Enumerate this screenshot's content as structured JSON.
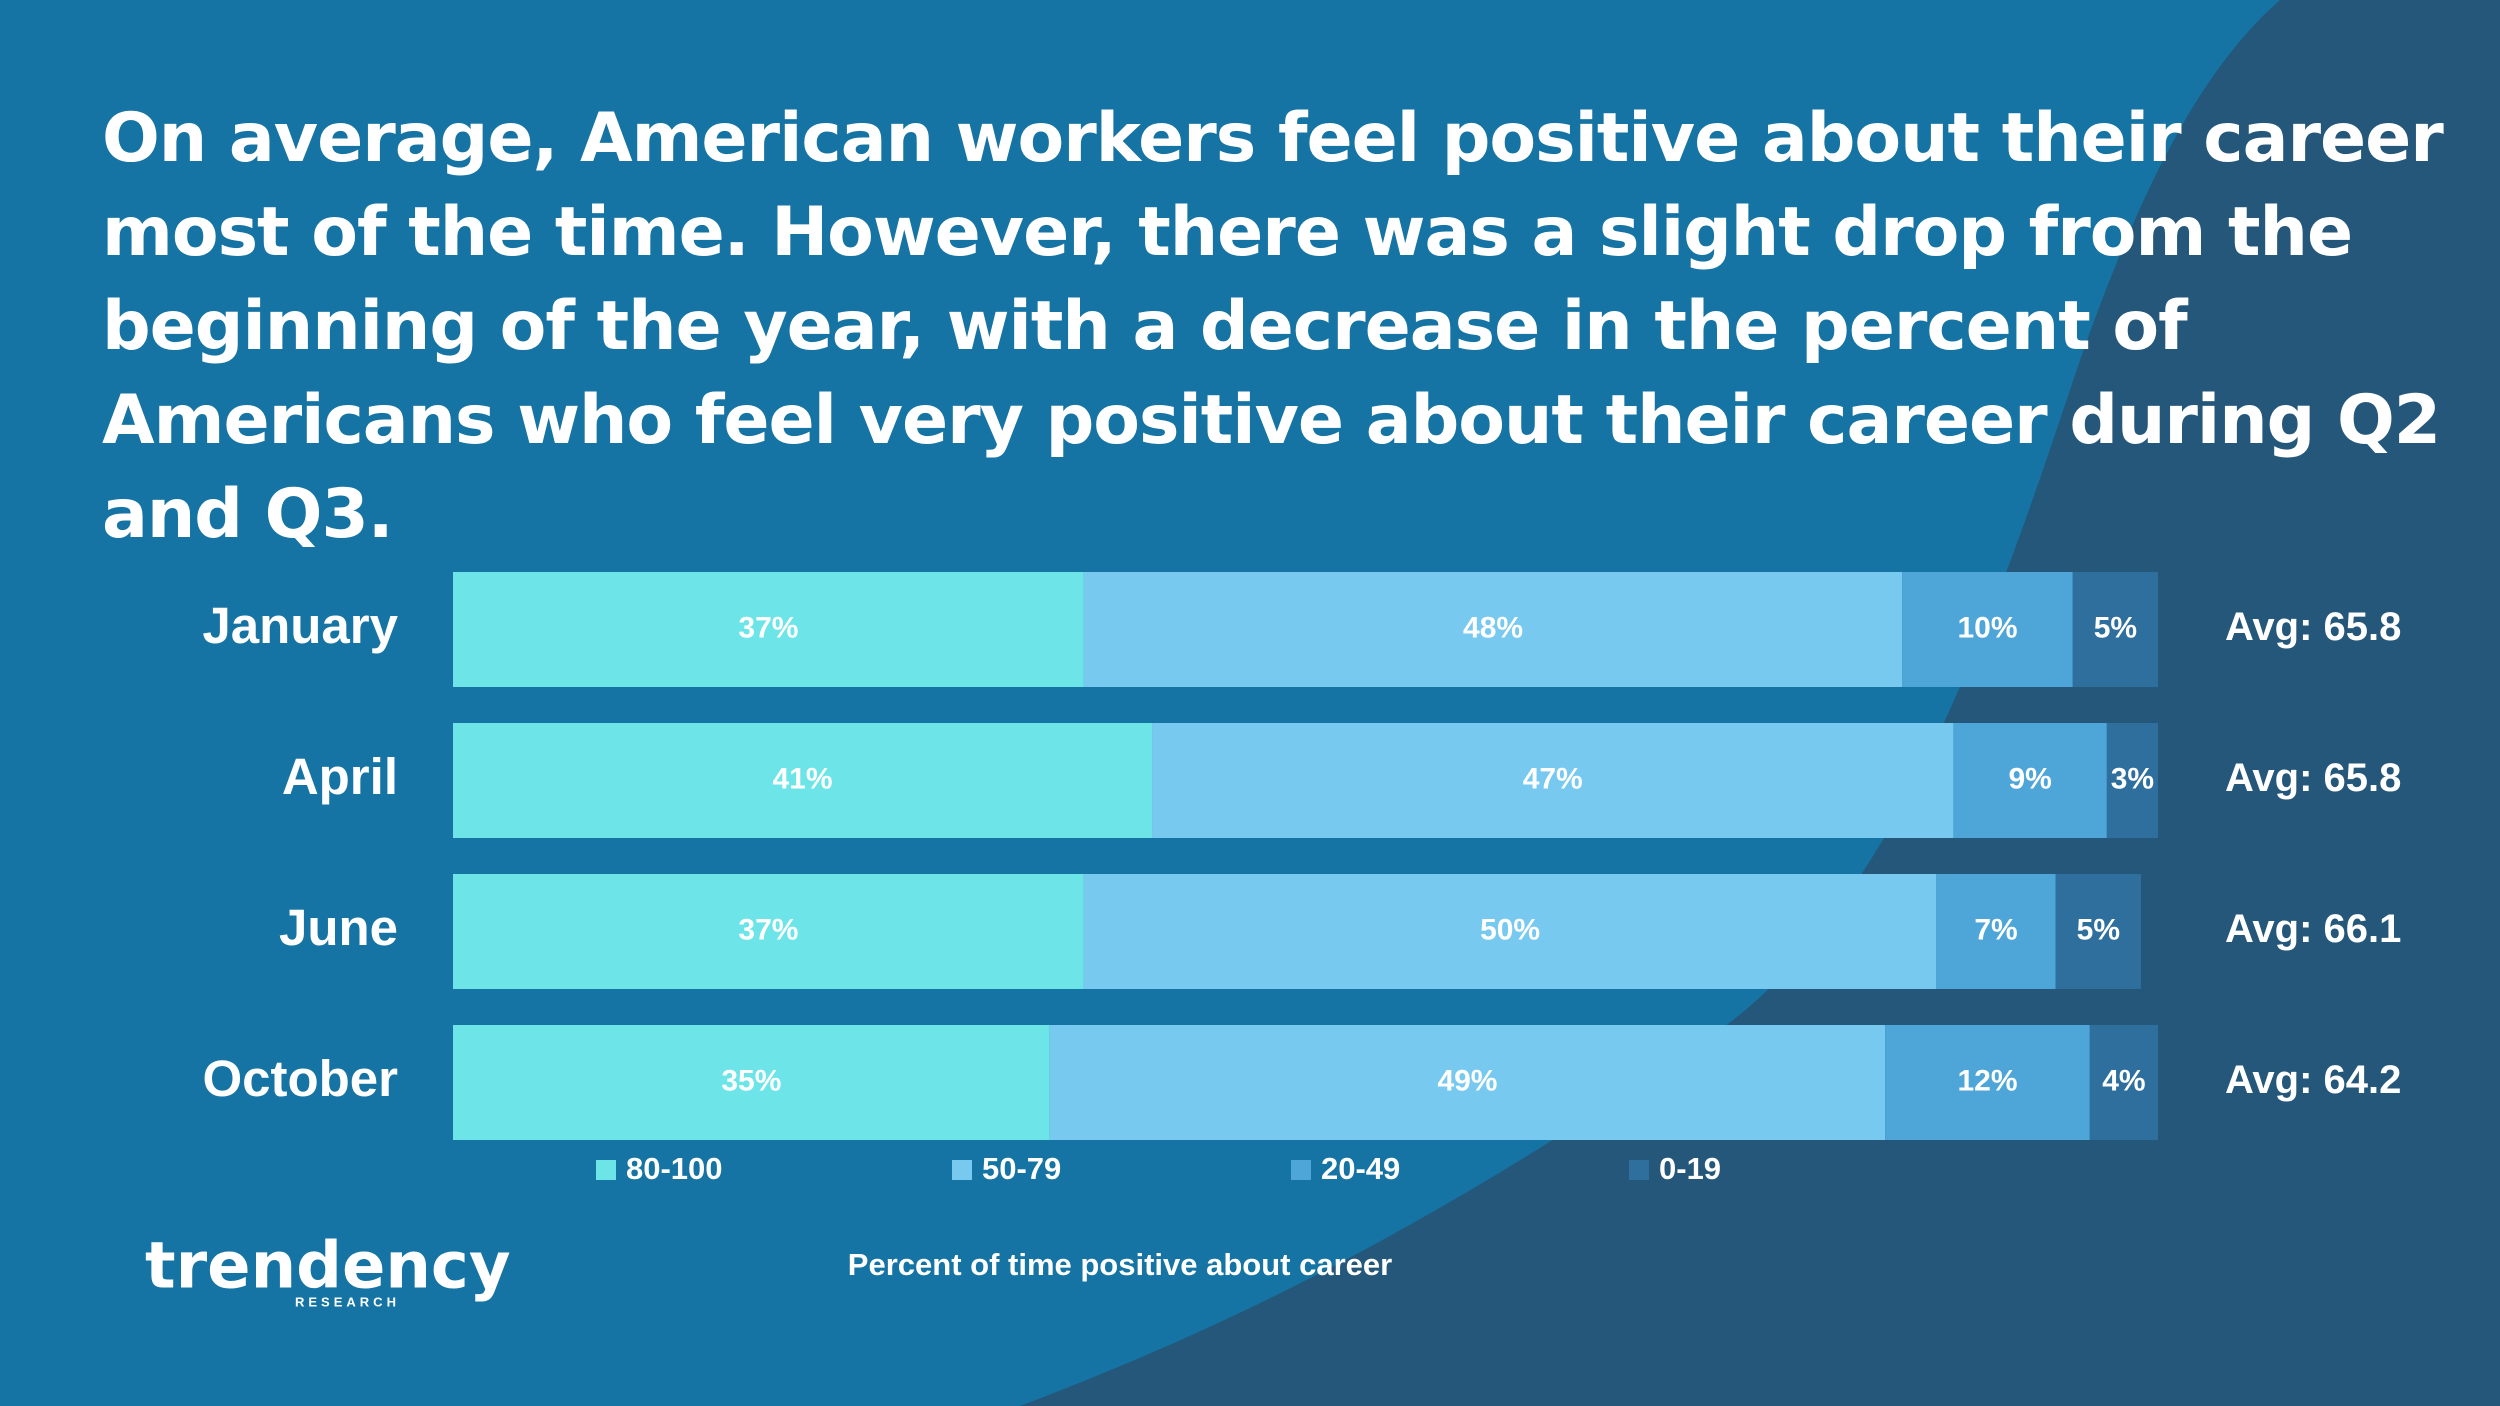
{
  "title": "On average, American workers feel positive about their career most of the time. However, there was a slight drop from the beginning of the year, with a decrease in the percent of Americans who feel very positive about their career during Q2 and Q3.",
  "logo": {
    "name": "trendency",
    "sub": "RESEARCH"
  },
  "chart_data": {
    "type": "stacked-bar-horizontal",
    "categories": [
      "January",
      "April",
      "June",
      "October"
    ],
    "series": [
      {
        "name": "80-100",
        "color": "#6de5e8",
        "values": [
          37,
          41,
          37,
          35
        ],
        "value_labels": [
          "37%",
          "41%",
          "37%",
          "35%"
        ]
      },
      {
        "name": "50-79",
        "color": "#78c9f0",
        "values": [
          48,
          47,
          50,
          49
        ],
        "value_labels": [
          "48%",
          "47%",
          "50%",
          "49%"
        ]
      },
      {
        "name": "20-49",
        "color": "#4ea6d8",
        "values": [
          10,
          9,
          7,
          12
        ],
        "value_labels": [
          "10%",
          "9%",
          "7%",
          "12%"
        ]
      },
      {
        "name": "0-19",
        "color": "#2e6f9e",
        "values": [
          5,
          3,
          5,
          4
        ],
        "value_labels": [
          "5%",
          "3%",
          "5%",
          "4%"
        ]
      }
    ],
    "annotations": [
      "Avg: 65.8",
      "Avg: 65.8",
      "Avg: 66.1",
      "Avg: 64.2"
    ],
    "xlabel": "Percent of time positive about career",
    "xlim": [
      0,
      100
    ]
  }
}
